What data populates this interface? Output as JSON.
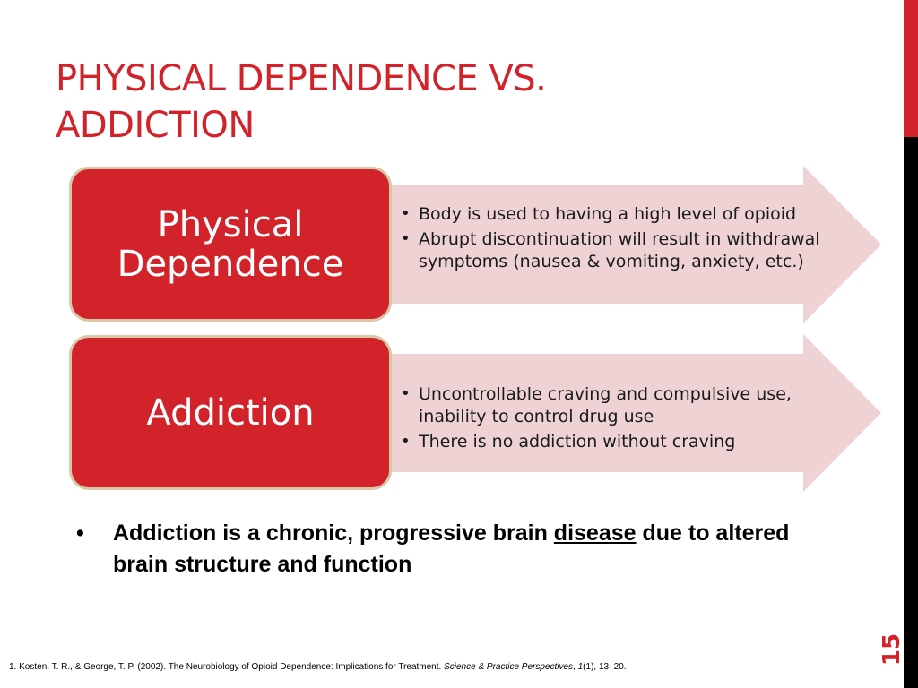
{
  "slide": {
    "title_line1": "PHYSICAL DEPENDENCE VS.",
    "title_line2": "ADDICTION",
    "page_number": "15"
  },
  "colors": {
    "accent_red": "#d2232a",
    "arrow_pink": "#efd3d4",
    "box_border": "#d9c7a8",
    "side_bar_dark": "#000000"
  },
  "blocks": [
    {
      "heading_line1": "Physical",
      "heading_line2": "Dependence",
      "bullets": [
        "Body is used to having a high level of opioid",
        "Abrupt discontinuation will result in withdrawal symptoms (nausea & vomiting, anxiety, etc.)"
      ]
    },
    {
      "heading_line1": "Addiction",
      "bullets": [
        "Uncontrollable craving and compulsive use, inability to control drug use",
        "There is no addiction without craving"
      ]
    }
  ],
  "main_bullet": {
    "marker": "•",
    "text_before": "Addiction is a chronic, progressive brain ",
    "underlined": "disease",
    "text_after": " due to altered brain structure and function"
  },
  "citation": {
    "prefix": "1. Kosten, T. R., & George, T. P. (2002). The Neurobiology of Opioid Dependence: Implications for Treatment. ",
    "journal": "Science & Practice Perspectives",
    "sep1": ", ",
    "volume": "1",
    "suffix": "(1), 13–20."
  }
}
